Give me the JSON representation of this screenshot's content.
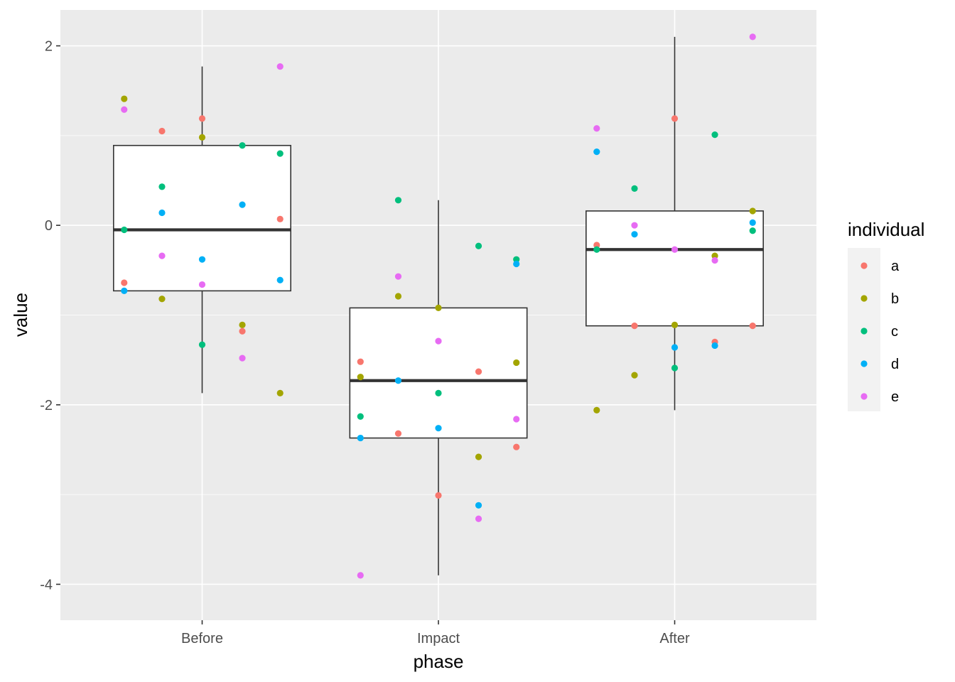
{
  "chart_data": {
    "type": "box",
    "xlabel": "phase",
    "ylabel": "value",
    "categories": [
      "Before",
      "Impact",
      "After"
    ],
    "ylim": [
      -4.4,
      2.4
    ],
    "yticks": [
      -4,
      -2,
      0,
      2
    ],
    "ytick_labels": [
      "-4",
      "-2",
      "0",
      "2"
    ],
    "grid": true,
    "legend": {
      "title": "individual",
      "placement": "right",
      "entries": [
        {
          "label": "a",
          "color": "#F8766D"
        },
        {
          "label": "b",
          "color": "#A3A500"
        },
        {
          "label": "c",
          "color": "#00BF7D"
        },
        {
          "label": "d",
          "color": "#00B0F6"
        },
        {
          "label": "e",
          "color": "#E76BF3"
        }
      ]
    },
    "boxes": [
      {
        "category": "Before",
        "whisker_low": -1.87,
        "q1": -0.73,
        "median": -0.05,
        "q3": 0.89,
        "whisker_high": 1.77
      },
      {
        "category": "Impact",
        "whisker_low": -3.9,
        "q1": -2.37,
        "median": -1.73,
        "q3": -0.92,
        "whisker_high": 0.28
      },
      {
        "category": "After",
        "whisker_low": -2.06,
        "q1": -1.12,
        "median": -0.27,
        "q3": 0.16,
        "whisker_high": 2.1
      }
    ],
    "points": [
      {
        "x": 0.67,
        "y": 1.41,
        "g": "b"
      },
      {
        "x": 0.67,
        "y": 1.29,
        "g": "e"
      },
      {
        "x": 0.67,
        "y": -0.05,
        "g": "c"
      },
      {
        "x": 0.67,
        "y": -0.64,
        "g": "a"
      },
      {
        "x": 0.67,
        "y": -0.73,
        "g": "d"
      },
      {
        "x": 0.83,
        "y": 1.05,
        "g": "a"
      },
      {
        "x": 0.83,
        "y": 0.43,
        "g": "c"
      },
      {
        "x": 0.83,
        "y": 0.14,
        "g": "d"
      },
      {
        "x": 0.83,
        "y": -0.34,
        "g": "e"
      },
      {
        "x": 0.83,
        "y": -0.82,
        "g": "b"
      },
      {
        "x": 1.0,
        "y": 1.19,
        "g": "a"
      },
      {
        "x": 1.0,
        "y": 0.98,
        "g": "b"
      },
      {
        "x": 1.0,
        "y": -0.38,
        "g": "d"
      },
      {
        "x": 1.0,
        "y": -0.66,
        "g": "e"
      },
      {
        "x": 1.0,
        "y": -1.33,
        "g": "c"
      },
      {
        "x": 1.17,
        "y": 0.89,
        "g": "c"
      },
      {
        "x": 1.17,
        "y": 0.23,
        "g": "d"
      },
      {
        "x": 1.17,
        "y": -1.11,
        "g": "b"
      },
      {
        "x": 1.17,
        "y": -1.18,
        "g": "a"
      },
      {
        "x": 1.17,
        "y": -1.48,
        "g": "e"
      },
      {
        "x": 1.33,
        "y": 1.77,
        "g": "e"
      },
      {
        "x": 1.33,
        "y": 0.8,
        "g": "c"
      },
      {
        "x": 1.33,
        "y": 0.07,
        "g": "a"
      },
      {
        "x": 1.33,
        "y": -0.61,
        "g": "d"
      },
      {
        "x": 1.33,
        "y": -1.87,
        "g": "b"
      },
      {
        "x": 1.67,
        "y": -1.52,
        "g": "a"
      },
      {
        "x": 1.67,
        "y": -1.69,
        "g": "b"
      },
      {
        "x": 1.67,
        "y": -2.13,
        "g": "c"
      },
      {
        "x": 1.67,
        "y": -2.37,
        "g": "d"
      },
      {
        "x": 1.67,
        "y": -3.9,
        "g": "e"
      },
      {
        "x": 1.83,
        "y": 0.28,
        "g": "c"
      },
      {
        "x": 1.83,
        "y": -0.57,
        "g": "e"
      },
      {
        "x": 1.83,
        "y": -0.79,
        "g": "b"
      },
      {
        "x": 1.83,
        "y": -1.73,
        "g": "d"
      },
      {
        "x": 1.83,
        "y": -2.32,
        "g": "a"
      },
      {
        "x": 2.0,
        "y": -0.92,
        "g": "b"
      },
      {
        "x": 2.0,
        "y": -1.29,
        "g": "e"
      },
      {
        "x": 2.0,
        "y": -1.87,
        "g": "c"
      },
      {
        "x": 2.0,
        "y": -2.26,
        "g": "d"
      },
      {
        "x": 2.0,
        "y": -3.01,
        "g": "a"
      },
      {
        "x": 2.17,
        "y": -0.23,
        "g": "c"
      },
      {
        "x": 2.17,
        "y": -1.63,
        "g": "a"
      },
      {
        "x": 2.17,
        "y": -2.58,
        "g": "b"
      },
      {
        "x": 2.17,
        "y": -3.12,
        "g": "d"
      },
      {
        "x": 2.17,
        "y": -3.27,
        "g": "e"
      },
      {
        "x": 2.33,
        "y": -0.38,
        "g": "c"
      },
      {
        "x": 2.33,
        "y": -0.43,
        "g": "d"
      },
      {
        "x": 2.33,
        "y": -1.53,
        "g": "b"
      },
      {
        "x": 2.33,
        "y": -2.16,
        "g": "e"
      },
      {
        "x": 2.33,
        "y": -2.47,
        "g": "a"
      },
      {
        "x": 2.67,
        "y": 1.08,
        "g": "e"
      },
      {
        "x": 2.67,
        "y": 0.82,
        "g": "d"
      },
      {
        "x": 2.67,
        "y": -0.22,
        "g": "a"
      },
      {
        "x": 2.67,
        "y": -0.27,
        "g": "c"
      },
      {
        "x": 2.67,
        "y": -2.06,
        "g": "b"
      },
      {
        "x": 2.83,
        "y": 0.41,
        "g": "c"
      },
      {
        "x": 2.83,
        "y": 0.0,
        "g": "e"
      },
      {
        "x": 2.83,
        "y": -0.1,
        "g": "d"
      },
      {
        "x": 2.83,
        "y": -1.12,
        "g": "a"
      },
      {
        "x": 2.83,
        "y": -1.67,
        "g": "b"
      },
      {
        "x": 3.0,
        "y": 1.19,
        "g": "a"
      },
      {
        "x": 3.0,
        "y": -0.27,
        "g": "e"
      },
      {
        "x": 3.0,
        "y": -1.11,
        "g": "b"
      },
      {
        "x": 3.0,
        "y": -1.36,
        "g": "d"
      },
      {
        "x": 3.0,
        "y": -1.59,
        "g": "c"
      },
      {
        "x": 3.17,
        "y": 1.01,
        "g": "c"
      },
      {
        "x": 3.17,
        "y": -0.34,
        "g": "b"
      },
      {
        "x": 3.17,
        "y": -0.39,
        "g": "e"
      },
      {
        "x": 3.17,
        "y": -1.3,
        "g": "a"
      },
      {
        "x": 3.17,
        "y": -1.34,
        "g": "d"
      },
      {
        "x": 3.33,
        "y": 2.1,
        "g": "e"
      },
      {
        "x": 3.33,
        "y": 0.16,
        "g": "b"
      },
      {
        "x": 3.33,
        "y": 0.03,
        "g": "d"
      },
      {
        "x": 3.33,
        "y": -0.06,
        "g": "c"
      },
      {
        "x": 3.33,
        "y": -1.12,
        "g": "a"
      }
    ]
  }
}
